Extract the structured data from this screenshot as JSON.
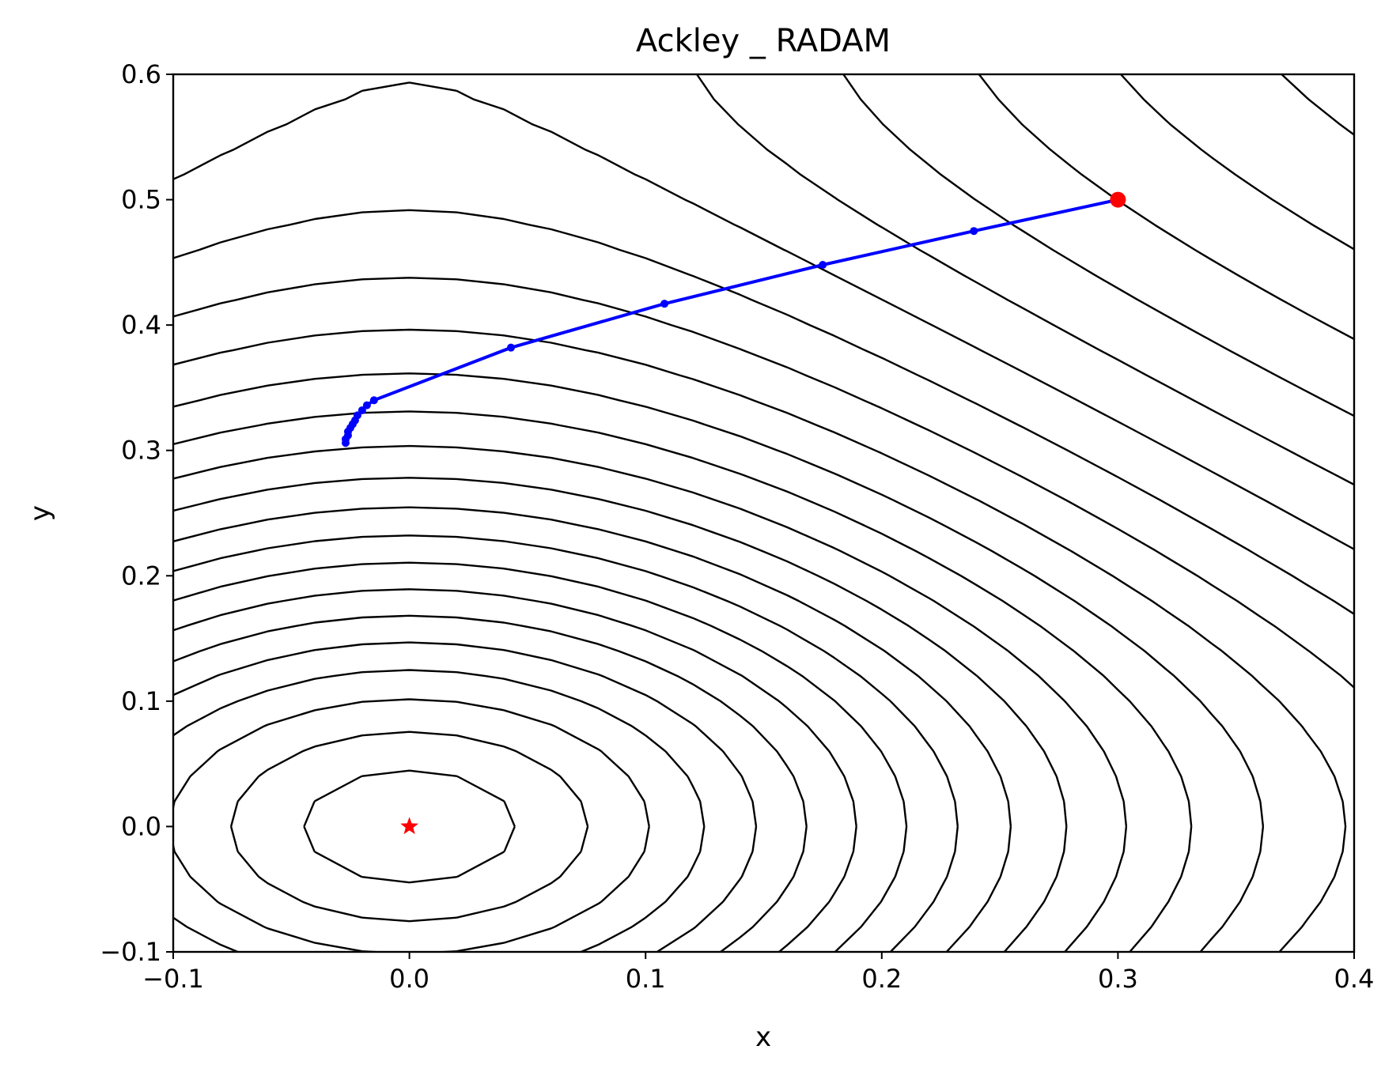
{
  "chart_data": {
    "type": "line",
    "title": "Ackley _ RADAM",
    "xlabel": "x",
    "ylabel": "y",
    "xlim": [
      -0.1,
      0.4
    ],
    "ylim": [
      -0.1,
      0.6
    ],
    "xticks": [
      -0.1,
      0.0,
      0.1,
      0.2,
      0.3,
      0.4
    ],
    "yticks": [
      -0.1,
      0.0,
      0.1,
      0.2,
      0.3,
      0.4,
      0.5,
      0.6
    ],
    "xtick_labels": [
      "−0.1",
      "0.0",
      "0.1",
      "0.2",
      "0.3",
      "0.4"
    ],
    "ytick_labels": [
      "−0.1",
      "0.0",
      "0.1",
      "0.2",
      "0.3",
      "0.4",
      "0.5",
      "0.6"
    ],
    "grid": false,
    "background": "Ackley function contour lines (black)",
    "colors": {
      "contour": "#000000",
      "highlight_contour": "#ff0000",
      "trajectory": "#0000ff",
      "start": "#ff0000",
      "minimum": "#ff0000"
    },
    "series": [
      {
        "points": [
          [
            0.3,
            0.5
          ],
          [
            0.239,
            0.475
          ],
          [
            0.175,
            0.448
          ],
          [
            0.108,
            0.417
          ],
          [
            0.043,
            0.382
          ],
          [
            -0.015,
            0.34
          ],
          [
            -0.018,
            0.336
          ],
          [
            -0.02,
            0.332
          ],
          [
            -0.022,
            0.328
          ],
          [
            -0.023,
            0.324
          ],
          [
            -0.024,
            0.321
          ],
          [
            -0.025,
            0.318
          ],
          [
            -0.026,
            0.315
          ],
          [
            -0.026,
            0.312
          ],
          [
            -0.027,
            0.309
          ],
          [
            -0.027,
            0.306
          ]
        ]
      }
    ],
    "start_point": [
      0.3,
      0.5
    ],
    "global_minimum": [
      0.0,
      0.0
    ]
  }
}
